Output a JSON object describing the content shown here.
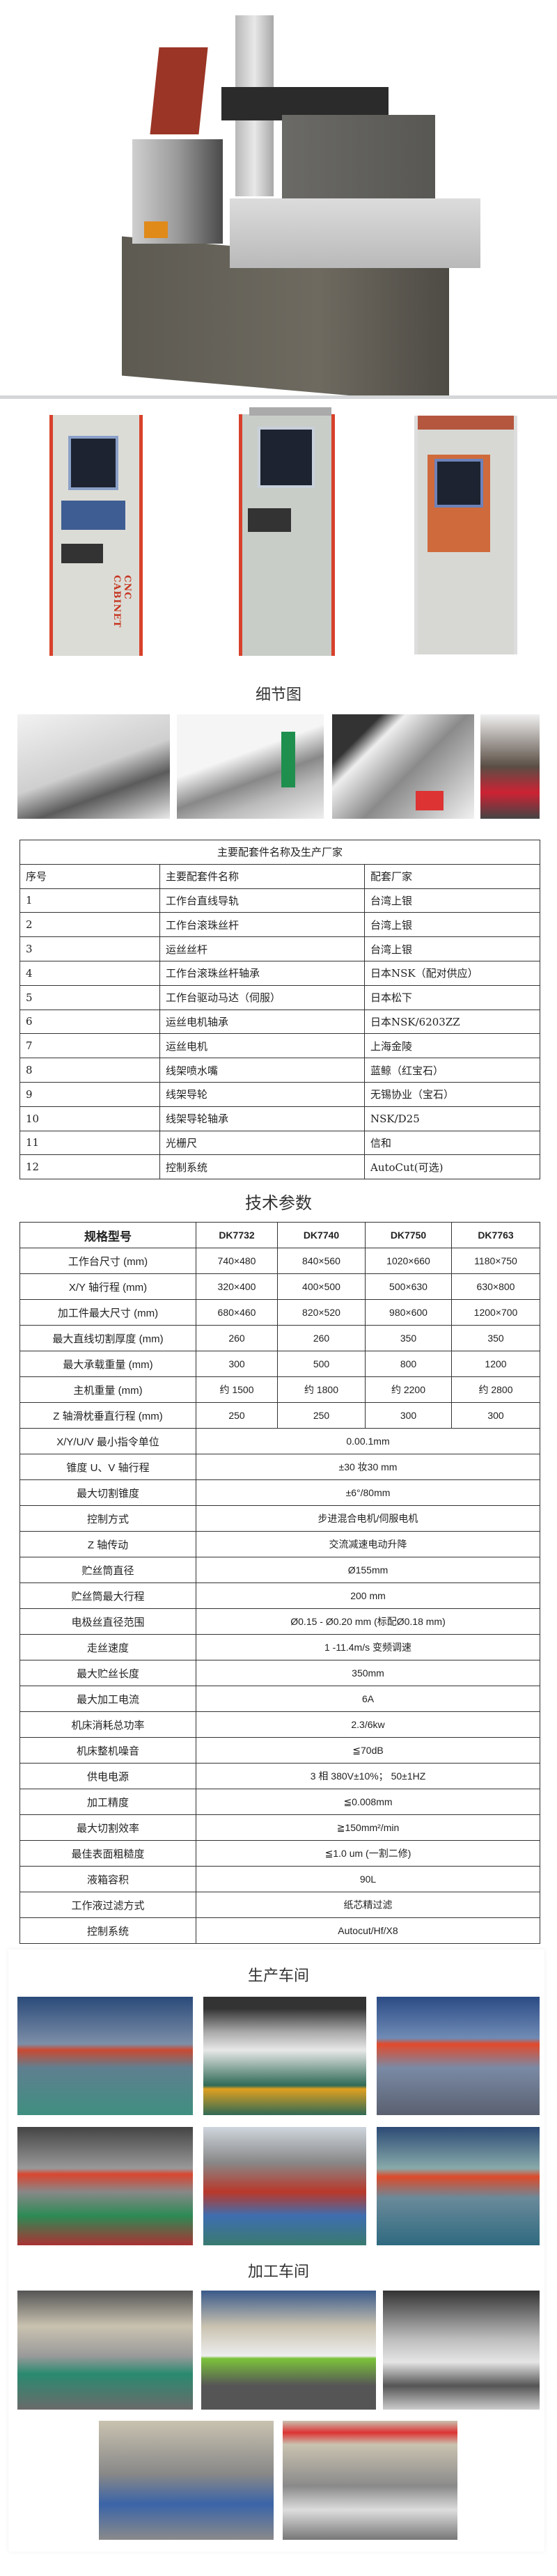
{
  "hero": {
    "image": "wire-cut-edm-machine-photo"
  },
  "cabinets": [
    {
      "image": "cnc-control-cabinet-1",
      "lettering": "CNC CABINET"
    },
    {
      "image": "cnc-control-cabinet-2"
    },
    {
      "image": "cnc-control-cabinet-3"
    }
  ],
  "details": {
    "title": "细节图",
    "images": [
      "ball-screw-detail",
      "linear-guide-detail",
      "worktable-detail",
      "wire-frame-detail"
    ]
  },
  "parts_table": {
    "title": "主要配套件名称及生产厂家",
    "headers": [
      "序号",
      "主要配套件名称",
      "配套厂家"
    ],
    "rows": [
      [
        "1",
        "工作台直线导轨",
        "台湾上银"
      ],
      [
        "2",
        "工作台滚珠丝杆",
        "台湾上银"
      ],
      [
        "3",
        "运丝丝杆",
        "台湾上银"
      ],
      [
        "4",
        "工作台滚珠丝杆轴承",
        "日本NSK（配对供应）"
      ],
      [
        "5",
        "工作台驱动马达（伺服）",
        "日本松下"
      ],
      [
        "6",
        "运丝电机轴承",
        "日本NSK/6203ZZ"
      ],
      [
        "7",
        "运丝电机",
        "上海金陵"
      ],
      [
        "8",
        "线架喷水嘴",
        "蓝鲸（红宝石）"
      ],
      [
        "9",
        "线架导轮",
        "无锡协业（宝石）"
      ],
      [
        "10",
        "线架导轮轴承",
        "NSK/D25"
      ],
      [
        "11",
        "光栅尺",
        "信和"
      ],
      [
        "12",
        "控制系统",
        "AutoCut(可选)"
      ]
    ]
  },
  "spec_table": {
    "title": "技术参数",
    "headers": [
      "规格型号",
      "DK7732",
      "DK7740",
      "DK7750",
      "DK7763"
    ],
    "model_rows": [
      [
        "工作台尺寸 (mm)",
        "740×480",
        "840×560",
        "1020×660",
        "1180×750"
      ],
      [
        "X/Y 轴行程 (mm)",
        "320×400",
        "400×500",
        "500×630",
        "630×800"
      ],
      [
        "加工件最大尺寸 (mm)",
        "680×460",
        "820×520",
        "980×600",
        "1200×700"
      ],
      [
        "最大直线切割厚度 (mm)",
        "260",
        "260",
        "350",
        "350"
      ],
      [
        "最大承载重量 (mm)",
        "300",
        "500",
        "800",
        "1200"
      ],
      [
        "主机重量 (mm)",
        "约 1500",
        "约 1800",
        "约 2200",
        "约 2800"
      ],
      [
        "Z 轴滑枕垂直行程 (mm)",
        "250",
        "250",
        "300",
        "300"
      ]
    ],
    "shared_rows": [
      [
        "X/Y/U/V 最小指令单位",
        "0.00.1mm"
      ],
      [
        "锥度 U、V 轴行程",
        "±30 妆30 mm"
      ],
      [
        "最大切割锥度",
        "±6°/80mm"
      ],
      [
        "控制方式",
        "步进混合电机/伺服电机"
      ],
      [
        "Z 轴传动",
        "交流减速电动升降"
      ],
      [
        "贮丝筒直径",
        "Ø155mm"
      ],
      [
        "贮丝筒最大行程",
        "200 mm"
      ],
      [
        "电极丝直径范围",
        "Ø0.15 - Ø0.20 mm (标配Ø0.18 mm)"
      ],
      [
        "走丝速度",
        "1 -11.4m/s 变频调速"
      ],
      [
        "最大贮丝长度",
        "350mm"
      ],
      [
        "最大加工电流",
        "6A"
      ],
      [
        "机床消耗总功率",
        "2.3/6kw"
      ],
      [
        "机床整机噪音",
        "≦70dB"
      ],
      [
        "供电电源",
        "3 相 380V±10%；  50±1HZ"
      ],
      [
        "加工精度",
        "≦0.008mm"
      ],
      [
        "最大切割效率",
        "≧150mm²/min"
      ],
      [
        "最佳表面粗糙度",
        "≦1.0 um (一割二修)"
      ],
      [
        "液箱容积",
        "90L"
      ],
      [
        "工作液过滤方式",
        "纸芯精过滤"
      ],
      [
        "控制系统",
        "Autocut/Hf/X8"
      ]
    ]
  },
  "production": {
    "title": "生产车间"
  },
  "processing": {
    "title": "加工车间"
  },
  "colors": {
    "accent_red": "#d8412b",
    "border": "#333333",
    "text": "#222222"
  }
}
